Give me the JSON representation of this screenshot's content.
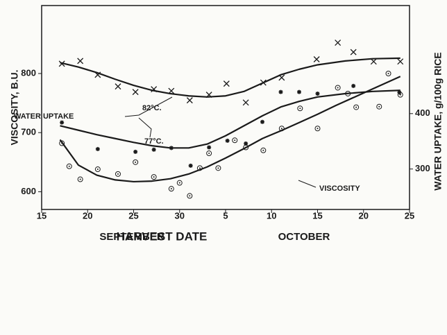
{
  "chart_data": {
    "type": "scatter",
    "xlabel": "HARVEST DATE",
    "ylabel": "VISCOSITY, B.U.",
    "y2label": "WATER UPTAKE, g/100g RICE",
    "months": [
      "SEPTEMBER",
      "OCTOBER"
    ],
    "annotations": [
      "WATER UPTAKE",
      "82°C.",
      "77°C.",
      "VISCOSITY"
    ],
    "xlim": [
      0,
      40
    ],
    "xticks": [
      {
        "value": 0,
        "label": "15"
      },
      {
        "value": 5,
        "label": "20"
      },
      {
        "value": 10,
        "label": "25"
      },
      {
        "value": 15,
        "label": "30"
      },
      {
        "value": 20,
        "label": "5"
      },
      {
        "value": 25,
        "label": "10"
      },
      {
        "value": 30,
        "label": "15"
      },
      {
        "value": 35,
        "label": "20"
      },
      {
        "value": 40,
        "label": "25"
      }
    ],
    "ylim": [
      570,
      915
    ],
    "yticks": [
      600,
      700,
      800
    ],
    "y2lim": [
      227,
      595
    ],
    "y2ticks": [
      300,
      400
    ],
    "color": "#1a1a1a",
    "series": [
      {
        "marker": "x",
        "axis": "y2",
        "x": [
          2.2,
          4.2,
          6.1,
          8.3,
          10.2,
          12.2,
          14.1,
          16.1,
          18.2,
          20.1,
          22.2,
          24.1,
          26.1,
          29.9,
          32.2,
          33.9,
          36.1,
          39.0
        ],
        "values": [
          490,
          495,
          470,
          449,
          439,
          444,
          441,
          424,
          434,
          454,
          420,
          456,
          465,
          498,
          528,
          511,
          494,
          494
        ]
      },
      {
        "marker": "asterisk",
        "axis": "y2",
        "x": [
          2.2,
          6.1,
          10.2,
          12.2,
          14.1,
          16.2,
          18.2,
          20.2,
          22.2,
          24.0,
          26.0,
          28.0,
          30.0,
          33.9,
          38.9
        ],
        "values": [
          384,
          336,
          331,
          335,
          338,
          306,
          339,
          351,
          346,
          385,
          439,
          439,
          436,
          450,
          438
        ]
      },
      {
        "marker": "circle",
        "axis": "y",
        "x": [
          2.2,
          3.0,
          4.2,
          6.1,
          8.3,
          10.2,
          12.2,
          14.1,
          15.0,
          16.1,
          17.2,
          18.2,
          19.2,
          21.0,
          22.2,
          24.1,
          26.1,
          28.1,
          30.0,
          32.2,
          33.3,
          34.2,
          36.7,
          37.7,
          39.0
        ],
        "values": [
          682,
          643,
          621,
          638,
          630,
          650,
          625,
          605,
          615,
          593,
          640,
          665,
          640,
          687,
          675,
          670,
          707,
          741,
          707,
          776,
          766,
          743,
          744,
          800,
          764
        ]
      },
      {
        "marker": "line",
        "axis": "y2",
        "x": [
          2,
          4,
          6,
          8,
          10,
          12,
          14,
          16,
          18,
          20,
          22,
          24,
          26,
          28,
          30,
          33,
          36,
          39
        ],
        "values": [
          492,
          484,
          474,
          462,
          451,
          442,
          436,
          432,
          430,
          432,
          440,
          455,
          470,
          480,
          488,
          495,
          499,
          500
        ]
      },
      {
        "marker": "line",
        "axis": "y2",
        "x": [
          2,
          4,
          6,
          8,
          10,
          12,
          14,
          16,
          18,
          20,
          22,
          24,
          26,
          28,
          30,
          33,
          36,
          39
        ],
        "values": [
          378,
          370,
          362,
          355,
          348,
          342,
          338,
          338,
          345,
          360,
          378,
          396,
          412,
          422,
          430,
          436,
          440,
          442
        ]
      },
      {
        "marker": "line",
        "axis": "y",
        "x": [
          2,
          4,
          6,
          8,
          10,
          12,
          14,
          16,
          18,
          20,
          22,
          24,
          26,
          28,
          30,
          32,
          34,
          36,
          39
        ],
        "values": [
          688,
          645,
          628,
          620,
          617,
          618,
          622,
          630,
          642,
          657,
          673,
          690,
          703,
          717,
          731,
          746,
          760,
          774,
          795
        ]
      }
    ]
  }
}
